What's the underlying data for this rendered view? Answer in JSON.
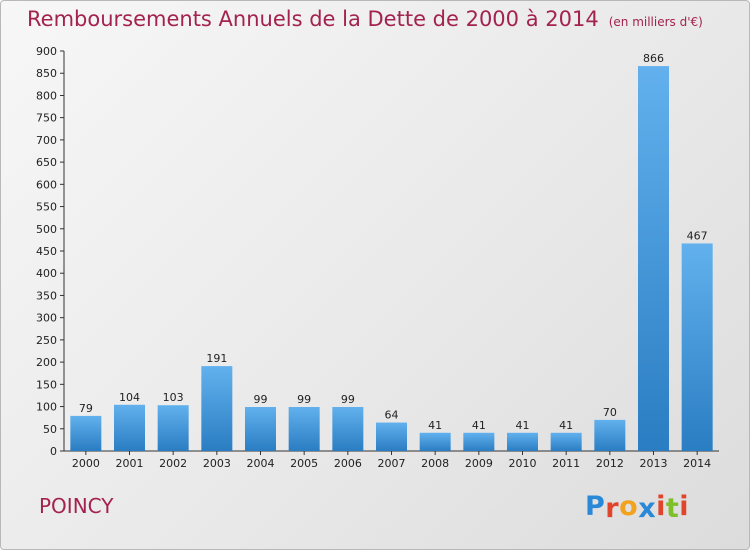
{
  "header": {
    "title": "Remboursements Annuels de la Dette de 2000 à 2014",
    "unit": "(en milliers d'€)"
  },
  "footer": {
    "commune": "POINCY",
    "logo_text": "Proxiti",
    "logo_colors": [
      "#2a88d8",
      "#e0442a",
      "#f2a21c",
      "#2a88d8",
      "#e0442a",
      "#7fbf2a",
      "#e0442a"
    ]
  },
  "colors": {
    "bar_light": "#62b1ee",
    "bar_dark": "#2a7dc2",
    "title": "#a3224f"
  },
  "chart_data": {
    "type": "bar",
    "categories": [
      "2000",
      "2001",
      "2002",
      "2003",
      "2004",
      "2005",
      "2006",
      "2007",
      "2008",
      "2009",
      "2010",
      "2011",
      "2012",
      "2013",
      "2014"
    ],
    "values": [
      79,
      104,
      103,
      191,
      99,
      99,
      99,
      64,
      41,
      41,
      41,
      41,
      70,
      866,
      467
    ],
    "title": "Remboursements Annuels de la Dette de 2000 à 2014",
    "subtitle": "(en milliers d'€)",
    "xlabel": "",
    "ylabel": "",
    "ylim": [
      0,
      900
    ],
    "yticks": [
      0,
      50,
      100,
      150,
      200,
      250,
      300,
      350,
      400,
      450,
      500,
      550,
      600,
      650,
      700,
      750,
      800,
      850,
      900
    ],
    "grid": false,
    "data_labels": true
  }
}
